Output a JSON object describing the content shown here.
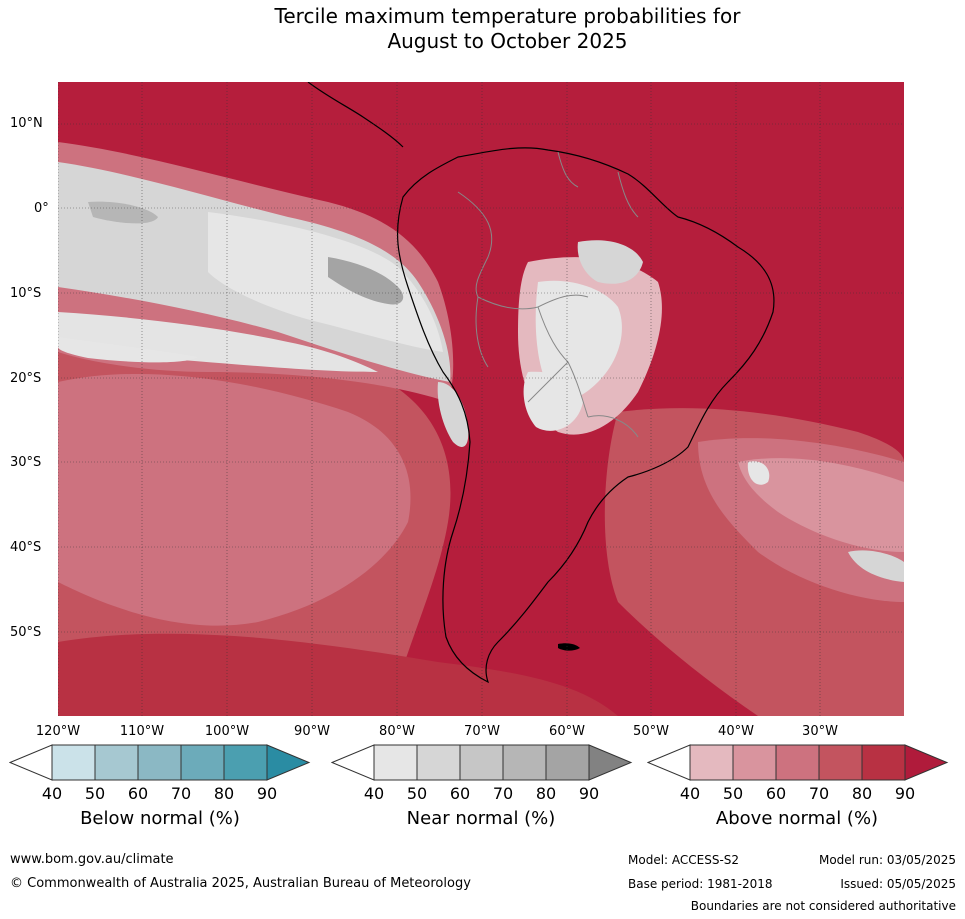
{
  "title_line1": "Tercile maximum temperature probabilities for",
  "title_line2": "August to October 2025",
  "map": {
    "region": "South America and surrounding oceans",
    "lat_labels": [
      "10°N",
      "0°",
      "10°S",
      "20°S",
      "30°S",
      "40°S",
      "50°S"
    ],
    "lon_labels": [
      "120°W",
      "110°W",
      "100°W",
      "90°W",
      "80°W",
      "70°W",
      "60°W",
      "50°W",
      "40°W",
      "30°W"
    ],
    "gridlines": "dotted"
  },
  "colorbars": [
    {
      "label": "Below normal (%)",
      "ticks": [
        "40",
        "50",
        "60",
        "70",
        "80",
        "90"
      ],
      "colors": [
        "#ffffff",
        "#cbe2e9",
        "#a6c8d1",
        "#8bb8c4",
        "#6cabba",
        "#4b9fb0",
        "#2a8ca3"
      ]
    },
    {
      "label": "Near normal (%)",
      "ticks": [
        "40",
        "50",
        "60",
        "70",
        "80",
        "90"
      ],
      "colors": [
        "#ffffff",
        "#e6e6e6",
        "#d6d6d6",
        "#c6c6c6",
        "#b6b6b6",
        "#a4a4a4",
        "#828282"
      ]
    },
    {
      "label": "Above normal (%)",
      "ticks": [
        "40",
        "50",
        "60",
        "70",
        "80",
        "90"
      ],
      "colors": [
        "#ffffff",
        "#e4b9bf",
        "#d9949e",
        "#cd727f",
        "#c3545f",
        "#b83143",
        "#b01b3b"
      ]
    }
  ],
  "footer": {
    "url": "www.bom.gov.au/climate",
    "copyright": "© Commonwealth of Australia 2025, Australian Bureau of Meteorology",
    "model": "Model: ACCESS-S2",
    "base_period": "Base period: 1981-2018",
    "model_run": "Model run: 03/05/2025",
    "issued": "Issued: 05/05/2025",
    "disclaimer": "Boundaries are not considered authoritative"
  }
}
